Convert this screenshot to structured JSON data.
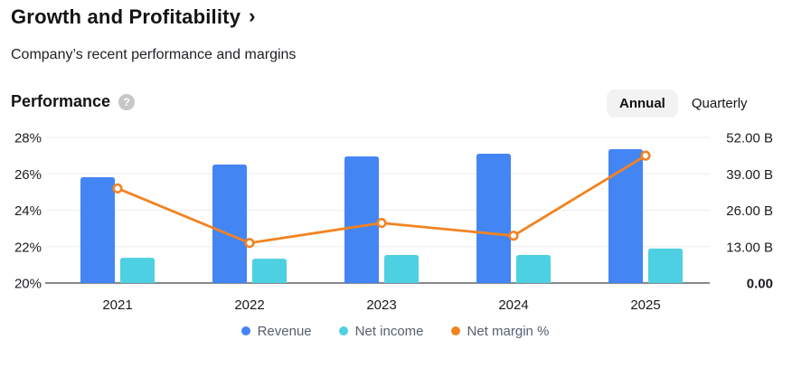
{
  "header": {
    "title": "Growth and Profitability",
    "chevron": "›",
    "subtitle": "Company’s recent performance and margins"
  },
  "section": {
    "title": "Performance",
    "help_glyph": "?",
    "toggle": {
      "options": [
        "Annual",
        "Quarterly"
      ],
      "selected": "Annual"
    }
  },
  "chart_data": {
    "type": "bar",
    "subtype": "grouped-bars-with-line-overlay",
    "title": "Performance",
    "categories": [
      "2021",
      "2022",
      "2023",
      "2024",
      "2025"
    ],
    "series": [
      {
        "name": "Revenue",
        "type": "bar",
        "axis": "right",
        "unit": "B",
        "color": "#4485F4",
        "values": [
          37.8,
          42.3,
          45.2,
          46.2,
          47.8
        ]
      },
      {
        "name": "Net income",
        "type": "bar",
        "axis": "right",
        "unit": "B",
        "color": "#4DD0E1",
        "values": [
          9.0,
          8.7,
          10.0,
          10.0,
          12.3
        ]
      },
      {
        "name": "Net margin %",
        "type": "line",
        "axis": "left",
        "unit": "%",
        "color": "#F28321",
        "values": [
          25.2,
          22.2,
          23.3,
          22.6,
          27.0
        ]
      }
    ],
    "left_axis": {
      "unit": "%",
      "min": 20,
      "max": 28,
      "tick_values": [
        28,
        26,
        24,
        22,
        20
      ],
      "tick_labels": [
        "28%",
        "26%",
        "24%",
        "22%",
        "20%"
      ]
    },
    "right_axis": {
      "unit": "B",
      "min": 0,
      "max": 52,
      "tick_values": [
        52,
        39,
        26,
        13,
        0
      ],
      "tick_labels": [
        "52.00 B",
        "39.00 B",
        "26.00 B",
        "13.00 B",
        "0.00"
      ],
      "bold_labels": [
        "0.00"
      ]
    },
    "grid": true,
    "legend_position": "bottom"
  },
  "colors": {
    "revenue_blue": "#4485F4",
    "net_income_teal": "#4DD0E1",
    "net_margin_orange": "#F28321",
    "gridline": "#ECECEF",
    "axis_line": "#5F6368",
    "pill_background": "#F2F2F2",
    "help_icon_background": "#C7C7C7",
    "legend_text": "#566070"
  }
}
